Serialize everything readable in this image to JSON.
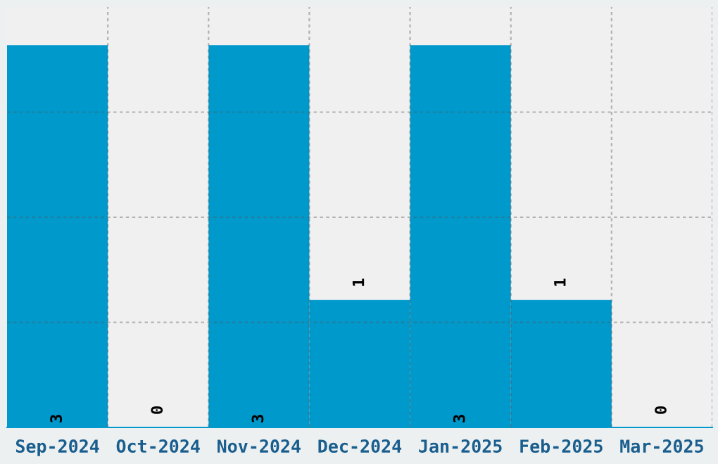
{
  "chart_data": {
    "type": "bar",
    "categories": [
      "Sep-2024",
      "Oct-2024",
      "Nov-2024",
      "Dec-2024",
      "Jan-2025",
      "Feb-2025",
      "Mar-2025"
    ],
    "values": [
      3,
      0,
      3,
      1,
      3,
      1,
      0
    ],
    "color": "#0099cc",
    "data_labels": true,
    "ylim": [
      0,
      3.3
    ],
    "tick_labels": "x",
    "grid": true
  }
}
